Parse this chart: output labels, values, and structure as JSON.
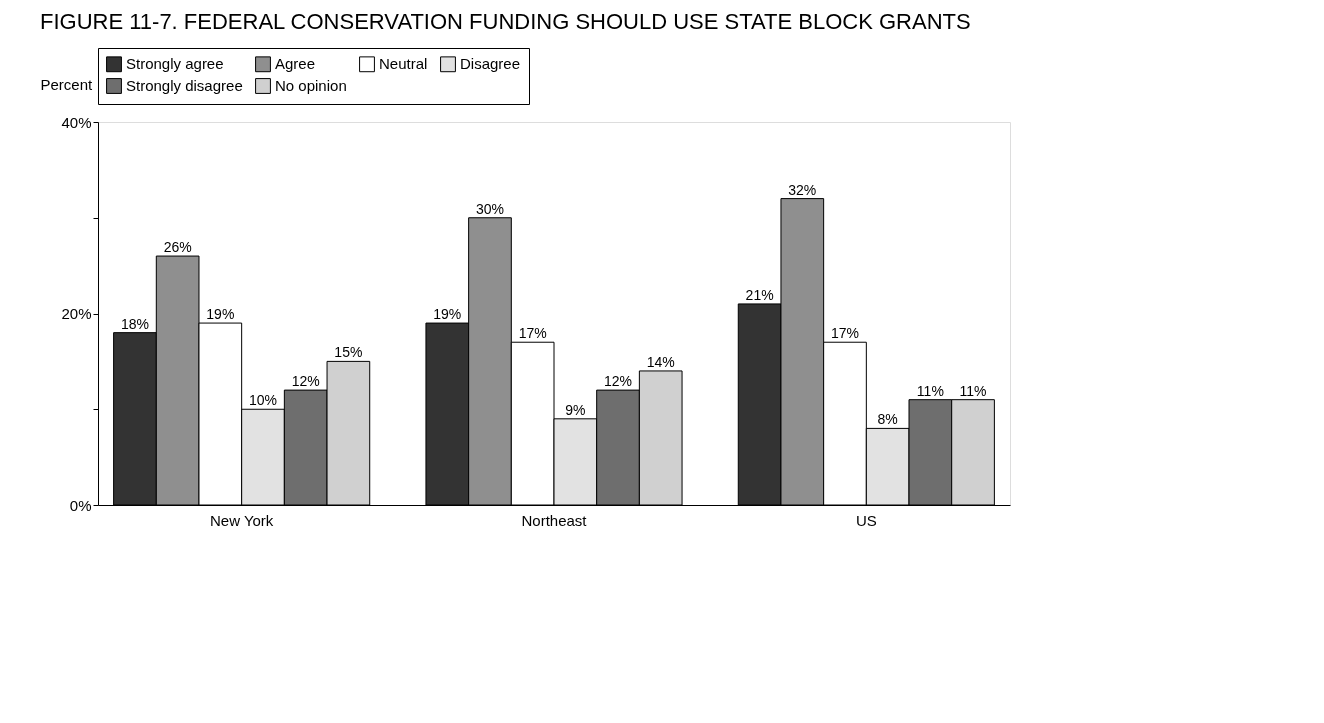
{
  "chart_data": {
    "type": "bar",
    "title": "FIGURE 11-7.  FEDERAL CONSERVATION FUNDING SHOULD USE STATE BLOCK GRANTS",
    "ylabel": "Percent",
    "categories": [
      "New York",
      "Northeast",
      "US"
    ],
    "series": [
      {
        "name": "Strongly agree",
        "color": "#333333",
        "values": [
          18,
          19,
          21
        ],
        "value_labels": [
          "18%",
          "19%",
          "21%"
        ]
      },
      {
        "name": "Agree",
        "color": "#8f8f8f",
        "values": [
          26,
          30,
          32
        ],
        "value_labels": [
          "26%",
          "30%",
          "32%"
        ]
      },
      {
        "name": "Neutral",
        "color": "#ffffff",
        "values": [
          19,
          17,
          17
        ],
        "value_labels": [
          "19%",
          "17%",
          "17%"
        ]
      },
      {
        "name": "Disagree",
        "color": "#e2e2e2",
        "values": [
          10,
          9,
          8
        ],
        "value_labels": [
          "10%",
          "9%",
          "8%"
        ]
      },
      {
        "name": "Strongly disagree",
        "color": "#6e6e6e",
        "values": [
          12,
          12,
          11
        ],
        "value_labels": [
          "12%",
          "12%",
          "11%"
        ]
      },
      {
        "name": "No opinion",
        "color": "#d0d0d0",
        "values": [
          15,
          14,
          11
        ],
        "value_labels": [
          "15%",
          "14%",
          "11%"
        ]
      }
    ],
    "ylim": [
      0,
      40
    ],
    "yticks": [
      {
        "value": 0,
        "label": "0%"
      },
      {
        "value": 10,
        "label": null
      },
      {
        "value": 20,
        "label": "20%"
      },
      {
        "value": 30,
        "label": null
      },
      {
        "value": 40,
        "label": "40%"
      }
    ],
    "grid": false,
    "legend": "top"
  }
}
